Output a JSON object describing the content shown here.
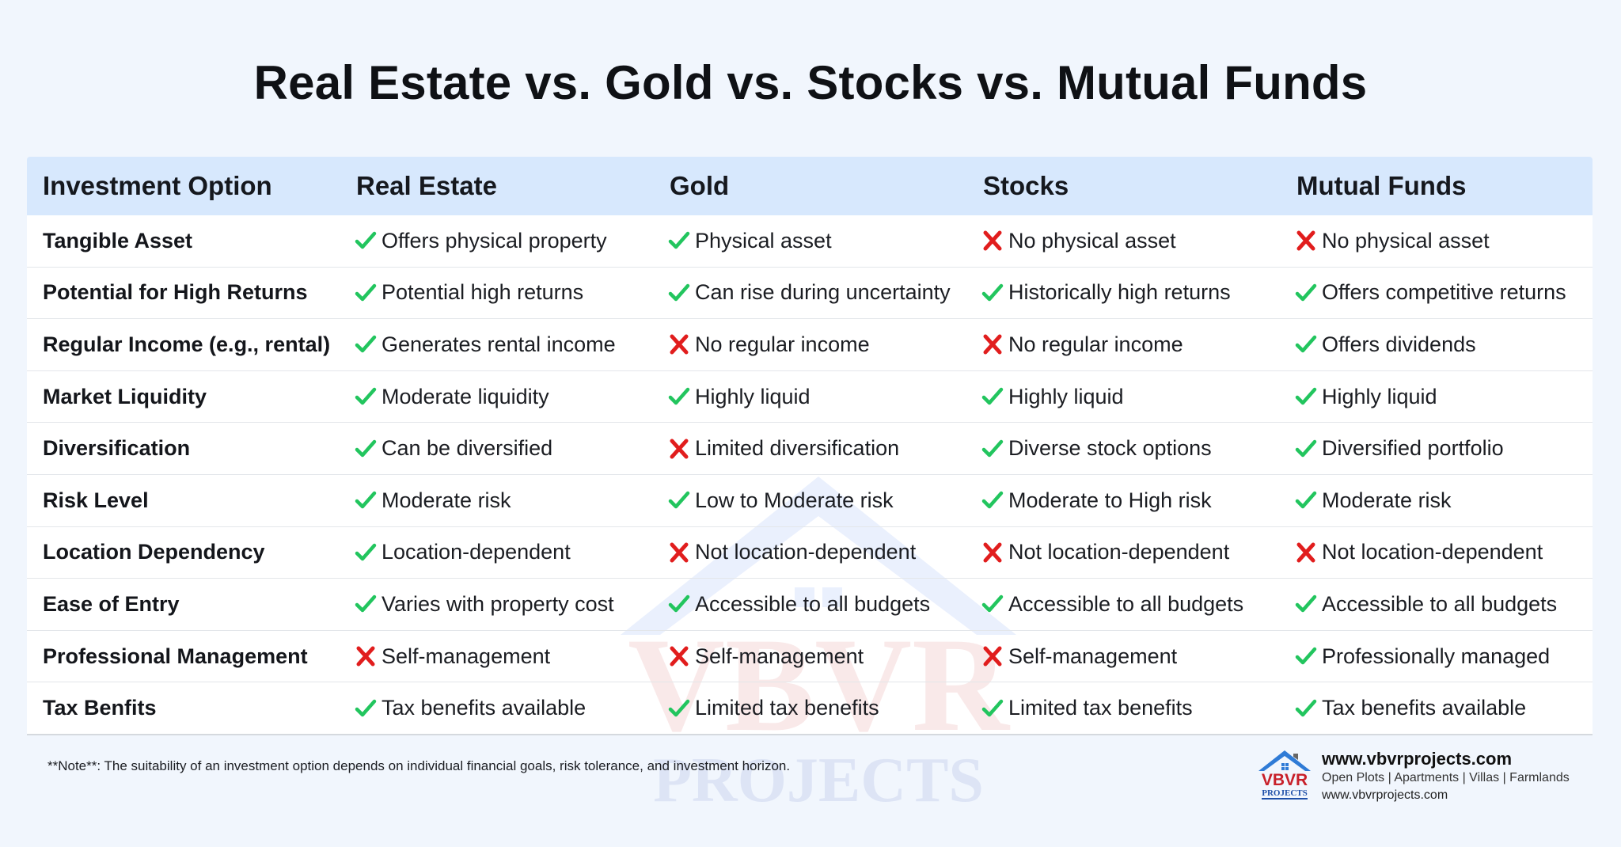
{
  "title": "Real Estate vs. Gold vs. Stocks vs. Mutual Funds",
  "table": {
    "headers": [
      "Investment Option",
      "Real Estate",
      "Gold",
      "Stocks",
      "Mutual Funds"
    ],
    "rows": [
      {
        "label": "Tangible Asset",
        "cells": [
          {
            "status": "check",
            "text": "Offers physical property"
          },
          {
            "status": "check",
            "text": "Physical asset"
          },
          {
            "status": "cross",
            "text": "No physical asset"
          },
          {
            "status": "cross",
            "text": "No physical asset"
          }
        ]
      },
      {
        "label": "Potential for High Returns",
        "cells": [
          {
            "status": "check",
            "text": "Potential high returns"
          },
          {
            "status": "check",
            "text": "Can rise during uncertainty"
          },
          {
            "status": "check",
            "text": "Historically high returns"
          },
          {
            "status": "check",
            "text": "Offers competitive returns"
          }
        ]
      },
      {
        "label": "Regular Income (e.g., rental)",
        "cells": [
          {
            "status": "check",
            "text": "Generates rental income"
          },
          {
            "status": "cross",
            "text": "No regular income"
          },
          {
            "status": "cross",
            "text": "No regular income"
          },
          {
            "status": "check",
            "text": "Offers dividends"
          }
        ]
      },
      {
        "label": "Market Liquidity",
        "cells": [
          {
            "status": "check",
            "text": "Moderate liquidity"
          },
          {
            "status": "check",
            "text": "Highly liquid"
          },
          {
            "status": "check",
            "text": "Highly liquid"
          },
          {
            "status": "check",
            "text": "Highly liquid"
          }
        ]
      },
      {
        "label": "Diversification",
        "cells": [
          {
            "status": "check",
            "text": "Can be diversified"
          },
          {
            "status": "cross",
            "text": "Limited diversification"
          },
          {
            "status": "check",
            "text": "Diverse stock options"
          },
          {
            "status": "check",
            "text": "Diversified portfolio"
          }
        ]
      },
      {
        "label": "Risk Level",
        "cells": [
          {
            "status": "check",
            "text": "Moderate risk"
          },
          {
            "status": "check",
            "text": "Low to Moderate risk"
          },
          {
            "status": "check",
            "text": "Moderate to High risk"
          },
          {
            "status": "check",
            "text": "Moderate risk"
          }
        ]
      },
      {
        "label": "Location Dependency",
        "cells": [
          {
            "status": "check",
            "text": "Location-dependent"
          },
          {
            "status": "cross",
            "text": "Not location-dependent"
          },
          {
            "status": "cross",
            "text": "Not location-dependent"
          },
          {
            "status": "cross",
            "text": "Not location-dependent"
          }
        ]
      },
      {
        "label": "Ease of Entry",
        "cells": [
          {
            "status": "check",
            "text": "Varies with property cost"
          },
          {
            "status": "check",
            "text": "Accessible to all budgets"
          },
          {
            "status": "check",
            "text": "Accessible to all budgets"
          },
          {
            "status": "check",
            "text": "Accessible to all budgets"
          }
        ]
      },
      {
        "label": "Professional Management",
        "cells": [
          {
            "status": "cross",
            "text": "Self-management"
          },
          {
            "status": "cross",
            "text": "Self-management"
          },
          {
            "status": "cross",
            "text": "Self-management"
          },
          {
            "status": "check",
            "text": "Professionally managed"
          }
        ]
      },
      {
        "label": "Tax Benfits",
        "cells": [
          {
            "status": "check",
            "text": "Tax benefits available"
          },
          {
            "status": "check",
            "text": "Limited tax benefits"
          },
          {
            "status": "check",
            "text": "Limited tax benefits"
          },
          {
            "status": "check",
            "text": "Tax benefits available"
          }
        ]
      }
    ]
  },
  "icons": {
    "check": "check-icon",
    "cross": "cross-icon"
  },
  "colors": {
    "check": "#22c55e",
    "cross": "#e11d1d",
    "header_bg": "#d7e8fd",
    "page_bg": "#f1f6fd"
  },
  "note": "**Note**: The suitability of an investment option depends on individual financial goals, risk tolerance, and investment horizon.",
  "brand": {
    "logo_text": "VBVR",
    "logo_sub": "PROJECTS",
    "website": "www.vbvrprojects.com",
    "services": "Open Plots | Apartments | Villas | Farmlands",
    "website_small": "www.vbvrprojects.com"
  }
}
